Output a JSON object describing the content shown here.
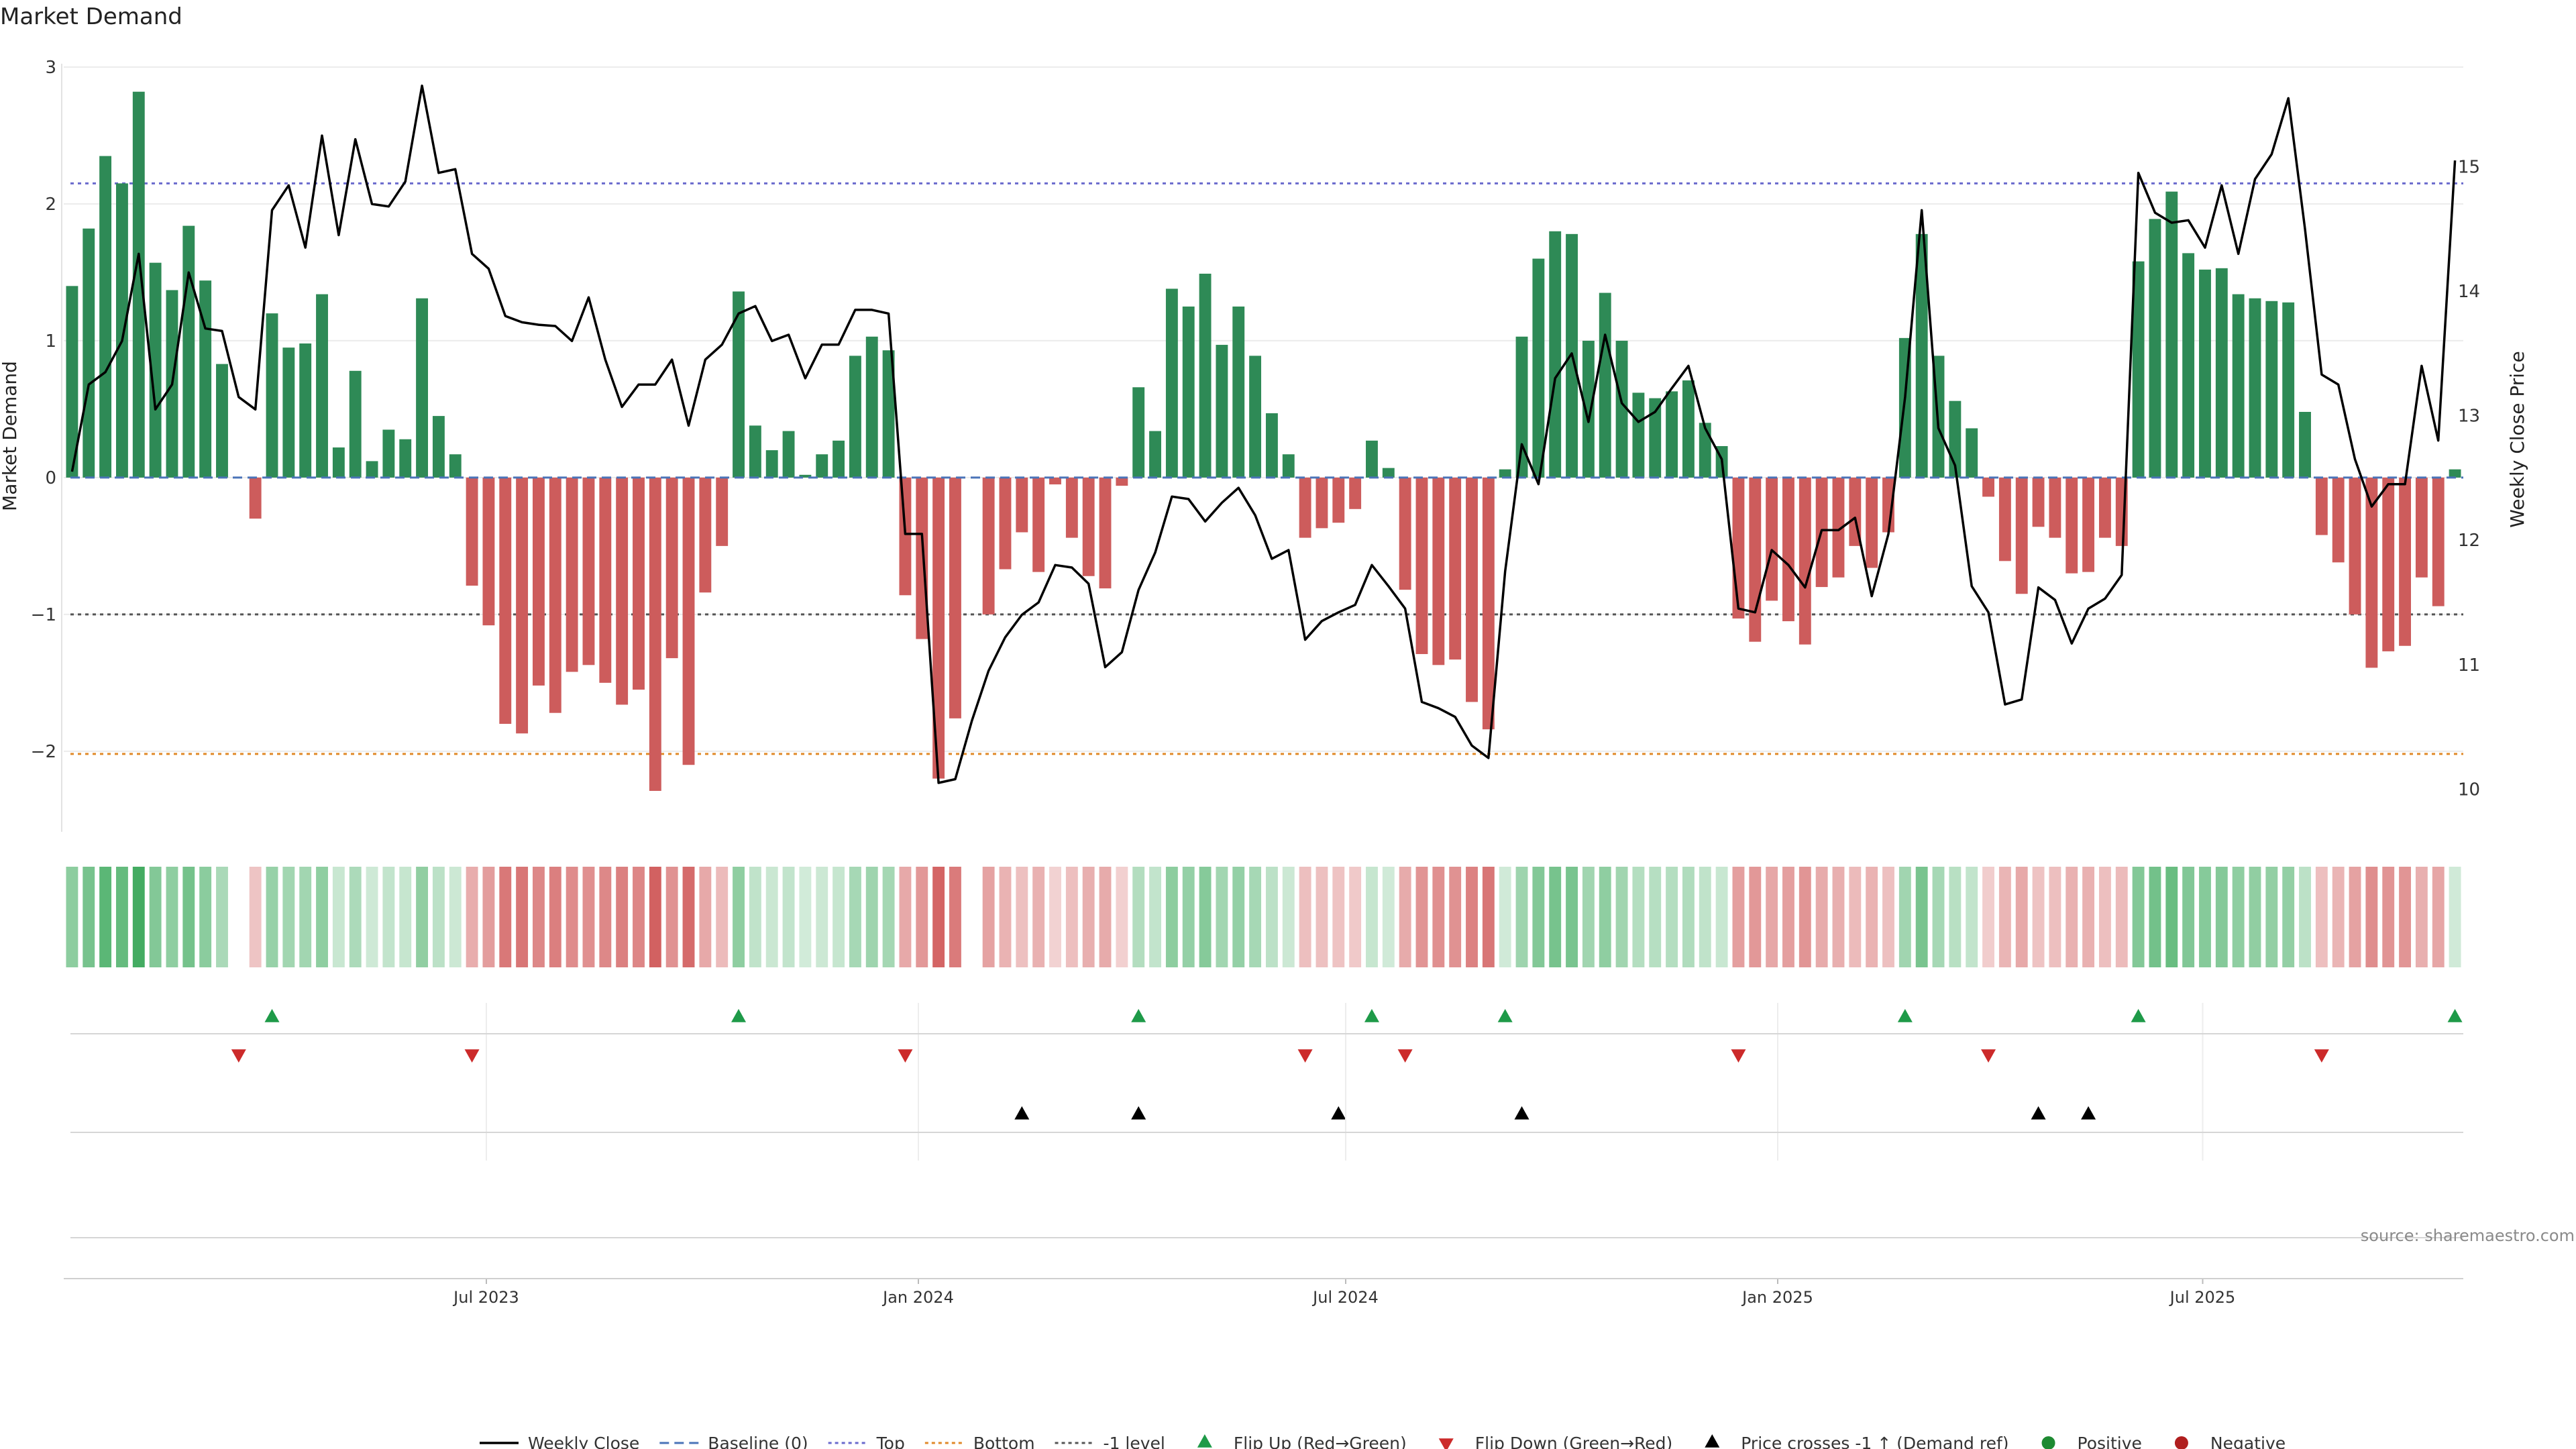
{
  "chart_data": {
    "type": "bar",
    "title": "Market Demand",
    "ylabel": "Market Demand",
    "y2label": "Weekly Close Price",
    "ylim": [
      -2.55,
      3.0
    ],
    "y2lim": [
      9.7,
      15.8
    ],
    "yticks": [
      3,
      2,
      1,
      0,
      -1,
      -2
    ],
    "ytick_labels": [
      "3",
      "2",
      "1",
      "0",
      "−1",
      "−2"
    ],
    "y2ticks": [
      15,
      14,
      13,
      12,
      11,
      10
    ],
    "x_start": "2023-01-02",
    "x_end": "2025-10-20",
    "x_tick_labels": [
      "Jul 2023",
      "Jan 2024",
      "Jul 2024",
      "Jan 2025",
      "Jul 2025"
    ],
    "x_tick_dates": [
      "2023-07-01",
      "2024-01-01",
      "2024-07-01",
      "2025-01-01",
      "2025-07-01"
    ],
    "reference_lines": {
      "top": 2.15,
      "minus_one": -1.0,
      "bottom": -2.02,
      "baseline": 0
    },
    "weeks": 144,
    "demand": [
      1.4,
      1.82,
      2.35,
      2.15,
      2.82,
      1.57,
      1.37,
      1.84,
      1.44,
      0.83,
      0,
      -0.3,
      1.2,
      0.95,
      0.98,
      1.34,
      0.22,
      0.78,
      0.12,
      0.35,
      0.28,
      1.31,
      0.45,
      0.17,
      -0.79,
      -1.08,
      -1.8,
      -1.87,
      -1.52,
      -1.72,
      -1.42,
      -1.37,
      -1.5,
      -1.66,
      -1.55,
      -2.29,
      -1.32,
      -2.1,
      -0.84,
      -0.5,
      1.36,
      0.38,
      0.2,
      0.34,
      0.02,
      0.17,
      0.27,
      0.89,
      1.03,
      0.93,
      -0.86,
      -1.18,
      -2.2,
      -1.76,
      0,
      -1.0,
      -0.67,
      -0.4,
      -0.69,
      -0.05,
      -0.44,
      -0.72,
      -0.81,
      -0.06,
      0.66,
      0.34,
      1.38,
      1.25,
      1.49,
      0.97,
      1.25,
      0.89,
      0.47,
      0.17,
      -0.44,
      -0.37,
      -0.33,
      -0.23,
      0.27,
      0.07,
      -0.82,
      -1.29,
      -1.37,
      -1.33,
      -1.64,
      -1.84,
      0.06,
      1.03,
      1.6,
      1.8,
      1.78,
      1.0,
      1.35,
      1.0,
      0.62,
      0.58,
      0.63,
      0.71,
      0.4,
      0.23,
      -1.03,
      -1.2,
      -0.9,
      -1.05,
      -1.22,
      -0.8,
      -0.73,
      -0.5,
      -0.66,
      -0.4,
      1.02,
      1.78,
      0.89,
      0.56,
      0.36,
      -0.14,
      -0.61,
      -0.85,
      -0.36,
      -0.44,
      -0.7,
      -0.69,
      -0.44,
      -0.5,
      1.58,
      1.89,
      2.09,
      1.64,
      1.52,
      1.53,
      1.34,
      1.31,
      1.29,
      1.28,
      0.48,
      -0.42,
      -0.62,
      -1.0,
      -1.39,
      -1.27,
      -1.23,
      -0.73,
      -0.94,
      0.06
    ],
    "close": [
      12.55,
      13.25,
      13.35,
      13.6,
      14.3,
      13.05,
      13.25,
      14.15,
      13.7,
      13.68,
      13.15,
      13.05,
      14.65,
      14.85,
      14.35,
      15.25,
      14.45,
      15.22,
      14.7,
      14.68,
      14.88,
      15.65,
      14.95,
      14.98,
      14.3,
      14.18,
      13.8,
      13.75,
      13.73,
      13.72,
      13.6,
      13.95,
      13.45,
      13.07,
      13.25,
      13.25,
      13.45,
      12.92,
      13.45,
      13.57,
      13.82,
      13.88,
      13.6,
      13.65,
      13.3,
      13.57,
      13.57,
      13.85,
      13.85,
      13.82,
      12.05,
      12.05,
      10.05,
      10.08,
      10.55,
      10.95,
      11.22,
      11.4,
      11.5,
      11.8,
      11.78,
      11.65,
      10.98,
      11.1,
      11.6,
      11.9,
      12.35,
      12.33,
      12.15,
      12.3,
      12.42,
      12.2,
      11.85,
      11.92,
      11.2,
      11.35,
      11.42,
      11.48,
      11.8,
      11.63,
      11.45,
      10.7,
      10.65,
      10.58,
      10.35,
      10.25,
      11.75,
      12.77,
      12.45,
      13.3,
      13.5,
      12.95,
      13.65,
      13.1,
      12.95,
      13.03,
      13.22,
      13.4,
      12.9,
      12.65,
      11.45,
      11.42,
      11.92,
      11.8,
      11.62,
      12.08,
      12.08,
      12.18,
      11.55,
      12.05,
      13.15,
      14.65,
      12.9,
      12.6,
      11.63,
      11.42,
      10.68,
      10.72,
      11.62,
      11.52,
      11.17,
      11.45,
      11.53,
      11.72,
      14.95,
      14.63,
      14.55,
      14.57,
      14.35,
      14.85,
      14.3,
      14.9,
      15.1,
      15.55,
      14.5,
      13.33,
      13.25,
      12.65,
      12.27,
      12.45,
      12.45,
      13.4,
      12.8,
      15.05
    ],
    "flip_up_weeks": [
      12,
      40,
      64,
      78,
      86,
      110,
      124,
      143
    ],
    "flip_down_weeks": [
      10,
      24,
      50,
      74,
      80,
      100,
      115,
      135
    ],
    "price_cross_weeks": [
      57,
      64,
      76,
      87,
      118,
      121
    ],
    "legend": [
      {
        "label": "Weekly Close",
        "marker": "line",
        "color": "#000000"
      },
      {
        "label": "Baseline (0)",
        "marker": "dash",
        "color": "#4a73b8"
      },
      {
        "label": "Top",
        "marker": "dot",
        "color": "#6a6acd"
      },
      {
        "label": "Bottom",
        "marker": "dot",
        "color": "#e08a2a"
      },
      {
        "label": "-1 level",
        "marker": "dot",
        "color": "#555555"
      },
      {
        "label": "Flip Up (Red→Green)",
        "marker": "tri-up",
        "color": "#1e9a48"
      },
      {
        "label": "Flip Down (Green→Red)",
        "marker": "tri-down",
        "color": "#cc2a2a"
      },
      {
        "label": "Price crosses -1 ↑ (Demand ref)",
        "marker": "tri-up",
        "color": "#000000"
      },
      {
        "label": "Positive",
        "marker": "circle",
        "color": "#1e8a32"
      },
      {
        "label": "Negative",
        "marker": "circle",
        "color": "#b01e1e"
      }
    ],
    "source_label": "source: sharemaestro.com"
  },
  "colors": {
    "positive_bar": "#2e8a56",
    "negative_bar": "#cd5c5c",
    "heat_green": "#3aa85a",
    "heat_red": "#c83c3c",
    "grid": "#ececec"
  }
}
